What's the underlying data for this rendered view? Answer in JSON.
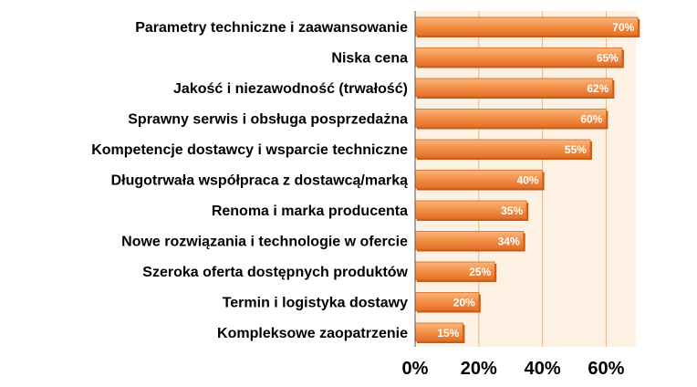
{
  "chart_data": {
    "type": "bar",
    "orientation": "horizontal",
    "categories": [
      "Parametry techniczne i zaawansowanie",
      "Niska cena",
      "Jakość i niezawodność (trwałość)",
      "Sprawny serwis i obsługa posprzedażna",
      "Kompetencje dostawcy i wsparcie techniczne",
      "Długotrwała współpraca z dostawcą/marką",
      "Renoma i marka producenta",
      "Nowe rozwiązania i technologie w ofercie",
      "Szeroka oferta dostępnych produktów",
      "Termin i logistyka dostawy",
      "Kompleksowe zaopatrzenie"
    ],
    "values": [
      70,
      65,
      62,
      60,
      55,
      40,
      35,
      34,
      25,
      20,
      15
    ],
    "value_labels": [
      "70%",
      "65%",
      "62%",
      "60%",
      "55%",
      "40%",
      "35%",
      "34%",
      "25%",
      "20%",
      "15%"
    ],
    "x_ticks": [
      0,
      20,
      40,
      60
    ],
    "x_tick_labels": [
      "0%",
      "20%",
      "40%",
      "60%"
    ],
    "xlim": [
      0,
      70
    ],
    "grid": true,
    "title": "",
    "xlabel": "",
    "ylabel": "",
    "colors": {
      "bar_light": "#f7a868",
      "bar_mid": "#f0853a",
      "bar_dark": "#c85a14",
      "plot_background": "#fdf1e4",
      "grid": "#e2b88f"
    }
  }
}
